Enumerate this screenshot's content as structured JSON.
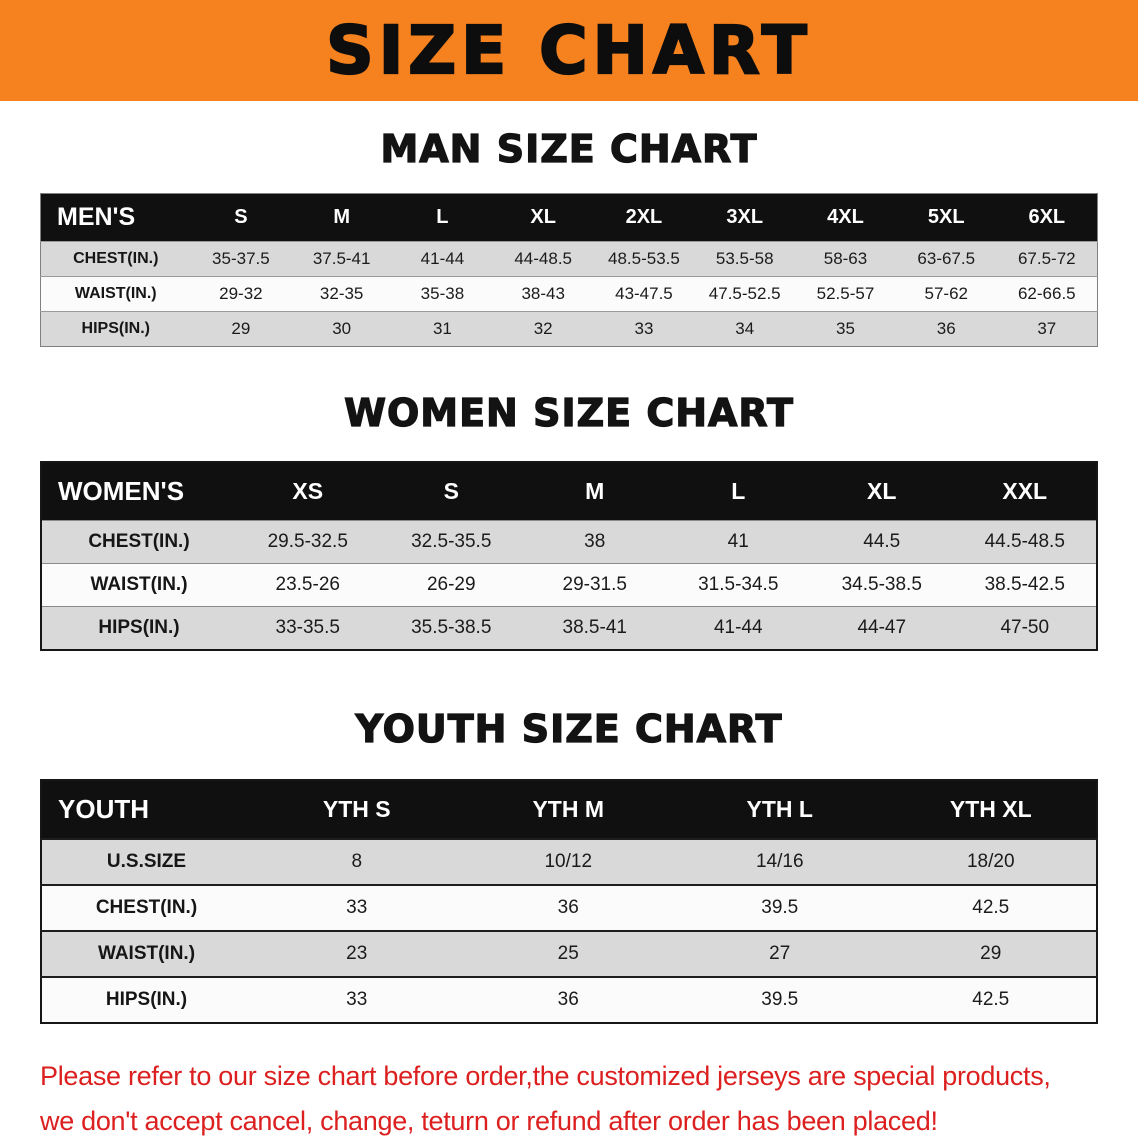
{
  "banner": {
    "title": "SIZE CHART"
  },
  "colors": {
    "banner_bg": "#f5821f",
    "banner_text": "#0d0d0d",
    "table_header_bg": "#101010",
    "table_header_text": "#ffffff",
    "row_stripe": "#d9d9d9",
    "disclaimer_text": "#dc1f1f"
  },
  "chart_data": [
    {
      "type": "table",
      "title": "MAN SIZE CHART",
      "columns": [
        "MEN'S",
        "S",
        "M",
        "L",
        "XL",
        "2XL",
        "3XL",
        "4XL",
        "5XL",
        "6XL"
      ],
      "rows": [
        [
          "CHEST(IN.)",
          "35-37.5",
          "37.5-41",
          "41-44",
          "44-48.5",
          "48.5-53.5",
          "53.5-58",
          "58-63",
          "63-67.5",
          "67.5-72"
        ],
        [
          "WAIST(IN.)",
          "29-32",
          "32-35",
          "35-38",
          "38-43",
          "43-47.5",
          "47.5-52.5",
          "52.5-57",
          "57-62",
          "62-66.5"
        ],
        [
          "HIPS(IN.)",
          "29",
          "30",
          "31",
          "32",
          "33",
          "34",
          "35",
          "36",
          "37"
        ]
      ]
    },
    {
      "type": "table",
      "title": "WOMEN SIZE CHART",
      "columns": [
        "WOMEN'S",
        "XS",
        "S",
        "M",
        "L",
        "XL",
        "XXL"
      ],
      "rows": [
        [
          "CHEST(IN.)",
          "29.5-32.5",
          "32.5-35.5",
          "38",
          "41",
          "44.5",
          "44.5-48.5"
        ],
        [
          "WAIST(IN.)",
          "23.5-26",
          "26-29",
          "29-31.5",
          "31.5-34.5",
          "34.5-38.5",
          "38.5-42.5"
        ],
        [
          "HIPS(IN.)",
          "33-35.5",
          "35.5-38.5",
          "38.5-41",
          "41-44",
          "44-47",
          "47-50"
        ]
      ]
    },
    {
      "type": "table",
      "title": "YOUTH SIZE CHART",
      "columns": [
        "YOUTH",
        "YTH S",
        "YTH M",
        "YTH L",
        "YTH XL"
      ],
      "rows": [
        [
          "U.S.SIZE",
          "8",
          "10/12",
          "14/16",
          "18/20"
        ],
        [
          "CHEST(IN.)",
          "33",
          "36",
          "39.5",
          "42.5"
        ],
        [
          "WAIST(IN.)",
          "23",
          "25",
          "27",
          "29"
        ],
        [
          "HIPS(IN.)",
          "33",
          "36",
          "39.5",
          "42.5"
        ]
      ]
    }
  ],
  "disclaimer": {
    "lines": [
      "Please refer to our size chart before order,the customized jerseys are special products,",
      "we don't accept cancel, change, teturn or refund after order has been placed!"
    ]
  }
}
